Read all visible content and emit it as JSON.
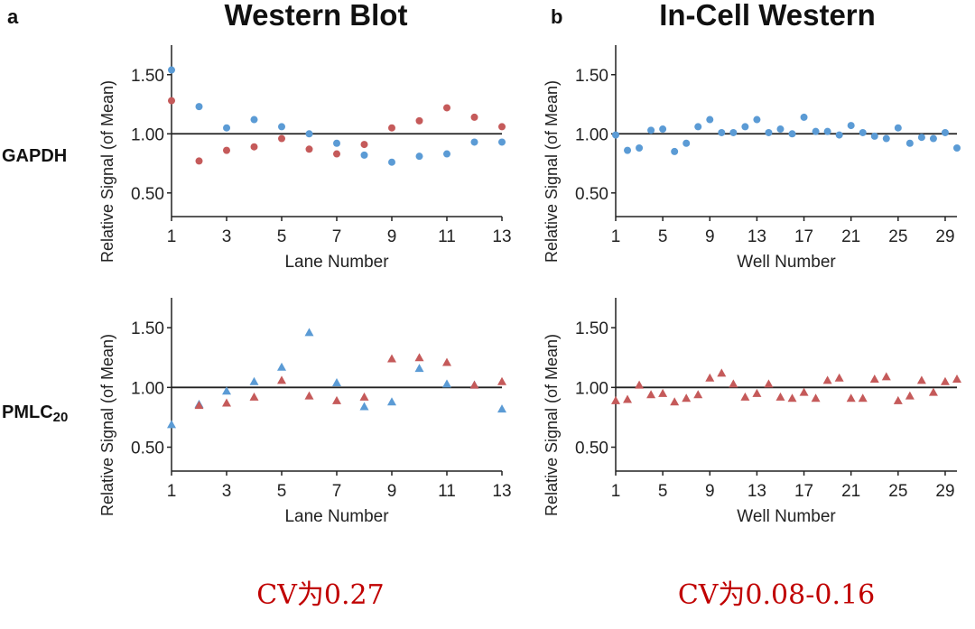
{
  "figure": {
    "panel_a": {
      "letter": "a",
      "title": "Western Blot"
    },
    "panel_b": {
      "letter": "b",
      "title": "In-Cell Western"
    },
    "rows": {
      "top_label": "GAPDH",
      "bottom_label_main": "PMLC",
      "bottom_label_sub": "20"
    },
    "cv_notes": {
      "left": "CV为0.27",
      "right": "CV为0.08-0.16"
    }
  },
  "colors": {
    "blue": "#5b9bd5",
    "red": "#c55a5a",
    "axis": "#222222",
    "cv_text": "#c00000"
  },
  "chart_data": [
    {
      "id": "wb-gapdh",
      "type": "scatter",
      "marker": "circle",
      "xlabel": "Lane Number",
      "ylabel": "Relative Signal (of Mean)",
      "xlim": [
        1,
        13
      ],
      "ylim": [
        0.3,
        1.75
      ],
      "xticks": [
        1,
        3,
        5,
        7,
        9,
        11,
        13
      ],
      "yticks": [
        0.5,
        1.0,
        1.5
      ],
      "ytick_labels": [
        "0.50",
        "1.00",
        "1.50"
      ],
      "reference_line": 1.0,
      "series": [
        {
          "name": "GAPDH blue",
          "color": "#5b9bd5",
          "x": [
            1,
            2,
            3,
            4,
            5,
            6,
            7,
            8,
            9,
            10,
            11,
            12,
            13
          ],
          "y": [
            1.54,
            1.23,
            1.05,
            1.12,
            1.06,
            1.0,
            0.92,
            0.82,
            0.76,
            0.81,
            0.83,
            0.93,
            0.93
          ]
        },
        {
          "name": "GAPDH red",
          "color": "#c55a5a",
          "x": [
            1,
            2,
            3,
            4,
            5,
            6,
            7,
            8,
            9,
            10,
            11,
            12,
            13
          ],
          "y": [
            1.28,
            0.77,
            0.86,
            0.89,
            0.96,
            0.87,
            0.83,
            0.91,
            1.05,
            1.11,
            1.22,
            1.14,
            1.06
          ]
        }
      ]
    },
    {
      "id": "icw-gapdh",
      "type": "scatter",
      "marker": "circle",
      "xlabel": "Well Number",
      "ylabel": "Relative Signal (of Mean)",
      "xlim": [
        1,
        30
      ],
      "ylim": [
        0.3,
        1.75
      ],
      "xticks": [
        1,
        5,
        9,
        13,
        17,
        21,
        25,
        29
      ],
      "yticks": [
        0.5,
        1.0,
        1.5
      ],
      "ytick_labels": [
        "0.50",
        "1.00",
        "1.50"
      ],
      "reference_line": 1.0,
      "series": [
        {
          "name": "GAPDH",
          "color": "#5b9bd5",
          "x": [
            1,
            2,
            3,
            4,
            5,
            6,
            7,
            8,
            9,
            10,
            11,
            12,
            13,
            14,
            15,
            16,
            17,
            18,
            19,
            20,
            21,
            22,
            23,
            24,
            25,
            26,
            27,
            28,
            29,
            30
          ],
          "y": [
            0.99,
            0.86,
            0.88,
            1.03,
            1.04,
            0.85,
            0.92,
            1.06,
            1.12,
            1.01,
            1.01,
            1.06,
            1.12,
            1.01,
            1.04,
            1.0,
            1.14,
            1.02,
            1.02,
            0.99,
            1.07,
            1.01,
            0.98,
            0.96,
            1.05,
            0.92,
            0.97,
            0.96,
            1.01,
            0.88
          ]
        }
      ]
    },
    {
      "id": "wb-pmlc",
      "type": "scatter",
      "marker": "triangle",
      "xlabel": "Lane Number",
      "ylabel": "Relative Signal (of Mean)",
      "xlim": [
        1,
        13
      ],
      "ylim": [
        0.3,
        1.75
      ],
      "xticks": [
        1,
        3,
        5,
        7,
        9,
        11,
        13
      ],
      "yticks": [
        0.5,
        1.0,
        1.5
      ],
      "ytick_labels": [
        "0.50",
        "1.00",
        "1.50"
      ],
      "reference_line": 1.0,
      "series": [
        {
          "name": "PMLC20 blue",
          "color": "#5b9bd5",
          "x": [
            1,
            2,
            3,
            4,
            5,
            6,
            7,
            8,
            9,
            10,
            11,
            12,
            13
          ],
          "y": [
            0.69,
            0.86,
            0.97,
            1.05,
            1.17,
            1.46,
            1.04,
            0.84,
            0.88,
            1.16,
            1.03,
            1.02,
            0.82
          ]
        },
        {
          "name": "PMLC20 red",
          "color": "#c55a5a",
          "x": [
            2,
            3,
            4,
            5,
            6,
            7,
            8,
            9,
            10,
            11,
            12,
            13
          ],
          "y": [
            0.85,
            0.87,
            0.92,
            1.06,
            0.93,
            0.89,
            0.92,
            1.24,
            1.25,
            1.21,
            1.02,
            1.05
          ]
        }
      ]
    },
    {
      "id": "icw-pmlc",
      "type": "scatter",
      "marker": "triangle",
      "xlabel": "Well Number",
      "ylabel": "Relative Signal (of Mean)",
      "xlim": [
        1,
        30
      ],
      "ylim": [
        0.3,
        1.75
      ],
      "xticks": [
        1,
        5,
        9,
        13,
        17,
        21,
        25,
        29
      ],
      "yticks": [
        0.5,
        1.0,
        1.5
      ],
      "ytick_labels": [
        "0.50",
        "1.00",
        "1.50"
      ],
      "reference_line": 1.0,
      "series": [
        {
          "name": "PMLC20",
          "color": "#c55a5a",
          "x": [
            1,
            2,
            3,
            4,
            5,
            6,
            7,
            8,
            9,
            10,
            11,
            12,
            13,
            14,
            15,
            16,
            17,
            18,
            19,
            20,
            21,
            22,
            23,
            24,
            25,
            26,
            27,
            28,
            29,
            30
          ],
          "y": [
            0.89,
            0.9,
            1.02,
            0.94,
            0.95,
            0.88,
            0.91,
            0.94,
            1.08,
            1.12,
            1.03,
            0.92,
            0.95,
            1.03,
            0.92,
            0.91,
            0.96,
            0.91,
            1.06,
            1.08,
            0.91,
            0.91,
            1.07,
            1.09,
            0.89,
            0.93,
            1.06,
            0.96,
            1.05,
            1.07
          ]
        }
      ]
    }
  ]
}
